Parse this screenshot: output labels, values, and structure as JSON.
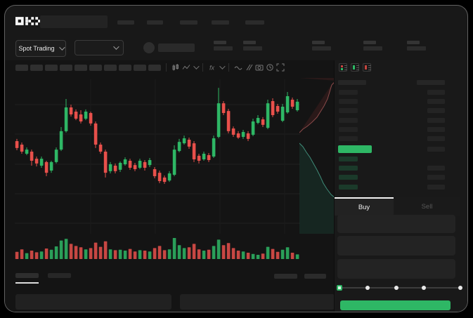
{
  "colors": {
    "up_green": "#2eb765",
    "down_red": "#e8504b",
    "accent_button": "#2eb765",
    "bid_row_green": "#1b3a2a",
    "last_price_highlight": "#2eb765",
    "depth_ask_fill": "rgba(125,45,45,0.22)",
    "depth_ask_line": "#8a4a4a",
    "depth_bid_fill": "rgba(32,105,80,0.22)",
    "depth_bid_line": "#3f8b78"
  },
  "brand": {
    "logo_text": "OKX"
  },
  "nav": {
    "item_widths": [
      24,
      23,
      25,
      25,
      27
    ]
  },
  "market_bar": {
    "market_selector": {
      "label": "Spot Trading"
    },
    "stat_group_lefts": [
      297,
      339,
      437,
      510,
      572
    ]
  },
  "toolbar": {
    "chip_count": 10,
    "icons": [
      "interval",
      "chart-type",
      "indicators",
      "line-tools",
      "compare",
      "screenshot",
      "settings",
      "fullscreen"
    ]
  },
  "chart_data": {
    "type": "candlestick",
    "title": "",
    "x_axis": {
      "labels_visible": false
    },
    "y_axis": {
      "labels_visible": false,
      "range": [
        0,
        100
      ]
    },
    "grid": {
      "h_lines": [
        36,
        78,
        121,
        163,
        205
      ],
      "v_lines": [
        108,
        200,
        292,
        384
      ]
    },
    "candles": [
      [
        60,
        61.4,
        54.1,
        55.5
      ],
      [
        57.7,
        59.1,
        51.8,
        53.2
      ],
      [
        51.8,
        55.9,
        50.9,
        54.5
      ],
      [
        53.2,
        54.5,
        44.1,
        47.3
      ],
      [
        48.6,
        50,
        43.6,
        45.5
      ],
      [
        44.1,
        50,
        42.7,
        48.6
      ],
      [
        46.4,
        47.3,
        37.3,
        39.5
      ],
      [
        40.9,
        47.3,
        39.5,
        46.4
      ],
      [
        46.4,
        55.9,
        45.5,
        54.5
      ],
      [
        54.5,
        69.1,
        53.6,
        66.4
      ],
      [
        66.4,
        87.3,
        65.5,
        81.8
      ],
      [
        81.8,
        83.6,
        75.9,
        77.3
      ],
      [
        79.1,
        80.5,
        73.6,
        74.5
      ],
      [
        77.3,
        80,
        71.4,
        72.7
      ],
      [
        74.5,
        80.5,
        73.6,
        79.1
      ],
      [
        78.2,
        79.1,
        70,
        71.4
      ],
      [
        71.4,
        72.7,
        55.5,
        57.7
      ],
      [
        57.7,
        59.1,
        51.8,
        53.2
      ],
      [
        53.2,
        54.5,
        36.4,
        39.5
      ],
      [
        40.5,
        46.4,
        39.1,
        45
      ],
      [
        44.1,
        45.5,
        39.1,
        40.5
      ],
      [
        41.4,
        46.8,
        40,
        45.9
      ],
      [
        45,
        49.5,
        44.1,
        48.2
      ],
      [
        47.3,
        48.6,
        41.4,
        42.7
      ],
      [
        44.5,
        45.9,
        40.5,
        41.8
      ],
      [
        42.7,
        48.6,
        41.8,
        47.3
      ],
      [
        46.4,
        47.7,
        40.9,
        42.7
      ],
      [
        44.5,
        49.1,
        43.2,
        47.7
      ],
      [
        41.8,
        43.2,
        35.9,
        37.3
      ],
      [
        39.5,
        40.9,
        32.7,
        34.1
      ],
      [
        36.4,
        37.7,
        32.3,
        33.6
      ],
      [
        34.5,
        40.5,
        33.6,
        39.1
      ],
      [
        38.2,
        57.3,
        37.3,
        54.5
      ],
      [
        53.6,
        61.4,
        52.7,
        59.5
      ],
      [
        58.6,
        63.6,
        57.7,
        61.8
      ],
      [
        60.9,
        62.3,
        55,
        56.4
      ],
      [
        58.6,
        60,
        46.4,
        48.2
      ],
      [
        50.5,
        51.8,
        45.5,
        47.3
      ],
      [
        48.2,
        53.2,
        47.3,
        51.8
      ],
      [
        50.9,
        52.3,
        46.4,
        47.7
      ],
      [
        50,
        63.6,
        49.1,
        61.8
      ],
      [
        62.7,
        94.5,
        61.8,
        84.5
      ],
      [
        84.5,
        85.9,
        76.8,
        78.2
      ],
      [
        79.5,
        80.9,
        65,
        66.4
      ],
      [
        68.2,
        69.5,
        62.7,
        64.1
      ],
      [
        65,
        66.4,
        61.4,
        62.3
      ],
      [
        62.7,
        67.3,
        61.4,
        65.9
      ],
      [
        65,
        66.4,
        60,
        61.4
      ],
      [
        64.1,
        74.5,
        63.2,
        72.7
      ],
      [
        71.8,
        76.8,
        70.9,
        75
      ],
      [
        74.1,
        75.5,
        69.1,
        70.5
      ],
      [
        68.6,
        86.8,
        67.7,
        84.5
      ],
      [
        85.9,
        87.7,
        75.5,
        76.8
      ],
      [
        82.7,
        84.1,
        77.7,
        79.1
      ],
      [
        73.2,
        84.1,
        72.3,
        82.3
      ],
      [
        78.6,
        91.8,
        77.7,
        89.1
      ],
      [
        86.8,
        88.2,
        80.9,
        82.3
      ],
      [
        80,
        87.3,
        79.1,
        85.5
      ]
    ],
    "volume": [
      34,
      46,
      28,
      40,
      32,
      36,
      50,
      44,
      60,
      88,
      96,
      72,
      62,
      56,
      46,
      52,
      78,
      58,
      84,
      46,
      42,
      44,
      40,
      48,
      36,
      42,
      40,
      36,
      52,
      62,
      42,
      46,
      100,
      66,
      52,
      56,
      72,
      46,
      40,
      44,
      62,
      92,
      66,
      76,
      52,
      40,
      36,
      30,
      24,
      20,
      26,
      58,
      48,
      34,
      44,
      56,
      30,
      22
    ]
  },
  "depth_overlay": {
    "red_curve": [
      [
        52,
        4
      ],
      [
        46,
        10
      ],
      [
        43,
        20
      ],
      [
        40,
        30
      ],
      [
        35,
        40
      ],
      [
        30,
        48
      ],
      [
        25,
        56
      ],
      [
        18,
        63
      ],
      [
        11,
        69
      ],
      [
        5,
        73
      ],
      [
        0,
        78
      ]
    ],
    "green_curve": [
      [
        0,
        93
      ],
      [
        5,
        98
      ],
      [
        10,
        106
      ],
      [
        15,
        113
      ],
      [
        20,
        122
      ],
      [
        25,
        131
      ],
      [
        30,
        141
      ],
      [
        34,
        150
      ],
      [
        39,
        158
      ],
      [
        45,
        166
      ],
      [
        52,
        172
      ]
    ]
  },
  "order_book": {
    "view_modes": [
      "all",
      "bids",
      "asks"
    ],
    "ask_rows": 6,
    "bid_rows": 4,
    "bid_amount_flags": [
      false,
      true,
      true,
      true
    ],
    "price_row": {
      "has_amount": true
    }
  },
  "trade_panel": {
    "tabs": [
      {
        "label": "Buy",
        "active": true
      },
      {
        "label": "Sell",
        "active": false
      }
    ],
    "field_count": 3,
    "slider": {
      "stop_percents": [
        0,
        23,
        47,
        70,
        100
      ],
      "active_index": 0
    },
    "submit_label": ""
  },
  "bottom_bar": {
    "tab_count": 2,
    "active_index": 0,
    "right_item_count": 2,
    "panel_count": 2
  }
}
